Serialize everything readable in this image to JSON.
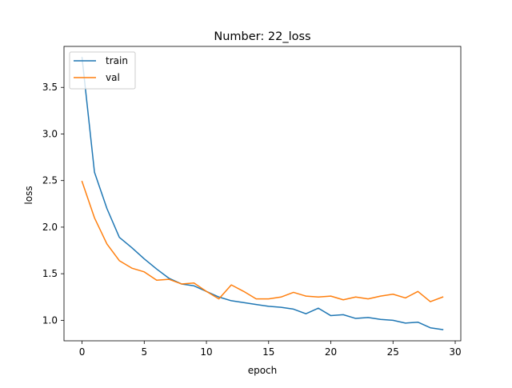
{
  "chart_data": {
    "type": "line",
    "title": "Number: 22_loss",
    "xlabel": "epoch",
    "ylabel": "loss",
    "xlim": [
      -1.45,
      30.45
    ],
    "ylim": [
      0.78,
      3.94
    ],
    "xticks": [
      0,
      5,
      10,
      15,
      20,
      25,
      30
    ],
    "yticks": [
      1.0,
      1.5,
      2.0,
      2.5,
      3.0,
      3.5
    ],
    "xtick_labels": [
      "0",
      "5",
      "10",
      "15",
      "20",
      "25",
      "30"
    ],
    "ytick_labels": [
      "1.0",
      "1.5",
      "2.0",
      "2.5",
      "3.0",
      "3.5"
    ],
    "grid": false,
    "legend_position": "top-left",
    "x": [
      0,
      1,
      2,
      3,
      4,
      5,
      6,
      7,
      8,
      9,
      10,
      11,
      12,
      13,
      14,
      15,
      16,
      17,
      18,
      19,
      20,
      21,
      22,
      23,
      24,
      25,
      26,
      27,
      28,
      29
    ],
    "series": [
      {
        "name": "train",
        "color": "#1f77b4",
        "values": [
          3.82,
          2.59,
          2.2,
          1.89,
          1.78,
          1.66,
          1.55,
          1.45,
          1.39,
          1.37,
          1.31,
          1.25,
          1.21,
          1.19,
          1.17,
          1.15,
          1.14,
          1.12,
          1.07,
          1.13,
          1.05,
          1.06,
          1.02,
          1.03,
          1.01,
          1.0,
          0.97,
          0.98,
          0.92,
          0.9
        ]
      },
      {
        "name": "val",
        "color": "#ff7f0e",
        "values": [
          2.49,
          2.1,
          1.82,
          1.64,
          1.56,
          1.52,
          1.43,
          1.44,
          1.39,
          1.4,
          1.31,
          1.23,
          1.38,
          1.31,
          1.23,
          1.23,
          1.25,
          1.3,
          1.26,
          1.25,
          1.26,
          1.22,
          1.25,
          1.23,
          1.26,
          1.28,
          1.24,
          1.31,
          1.2,
          1.25
        ]
      }
    ]
  }
}
